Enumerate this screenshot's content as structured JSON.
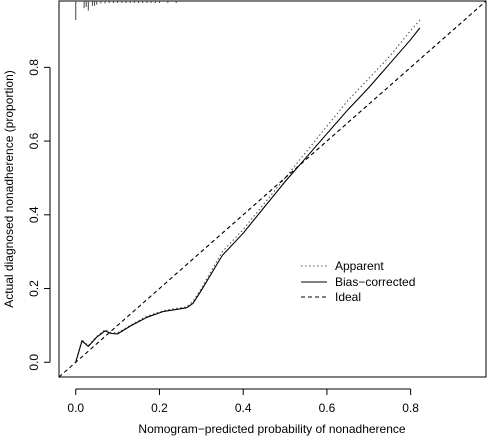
{
  "chart_data": {
    "type": "line",
    "title": "",
    "xlabel": "Nomogram−predicted probability of nonadherence",
    "ylabel": "Actual diagnosed nonadherence (proportion)",
    "xlim": [
      -0.04,
      0.98
    ],
    "ylim": [
      -0.04,
      0.98
    ],
    "x_ticks": [
      0.0,
      0.2,
      0.4,
      0.6,
      0.8
    ],
    "x_tick_labels": [
      "0.0",
      "0.2",
      "0.4",
      "0.6",
      "0.8"
    ],
    "y_ticks": [
      0.0,
      0.2,
      0.4,
      0.6,
      0.8
    ],
    "y_tick_labels": [
      "0.0",
      "0.2",
      "0.4",
      "0.6",
      "0.8"
    ],
    "grid": false,
    "legend_position": "bottom-right",
    "series": [
      {
        "name": "Apparent",
        "style": "dotted",
        "color": "#555555",
        "x": [
          0.0,
          0.015,
          0.03,
          0.05,
          0.07,
          0.085,
          0.1,
          0.13,
          0.17,
          0.21,
          0.25,
          0.265,
          0.28,
          0.3,
          0.35,
          0.4,
          0.45,
          0.5,
          0.55,
          0.6,
          0.65,
          0.7,
          0.75,
          0.8,
          0.825
        ],
        "y": [
          0.0,
          0.06,
          0.045,
          0.07,
          0.088,
          0.08,
          0.08,
          0.1,
          0.125,
          0.14,
          0.148,
          0.15,
          0.165,
          0.2,
          0.3,
          0.36,
          0.43,
          0.5,
          0.57,
          0.64,
          0.71,
          0.77,
          0.83,
          0.9,
          0.932
        ]
      },
      {
        "name": "Bias−corrected",
        "style": "solid",
        "color": "#000000",
        "x": [
          0.0,
          0.015,
          0.03,
          0.05,
          0.07,
          0.085,
          0.1,
          0.13,
          0.17,
          0.21,
          0.25,
          0.265,
          0.28,
          0.3,
          0.35,
          0.4,
          0.45,
          0.5,
          0.55,
          0.6,
          0.65,
          0.7,
          0.75,
          0.8,
          0.822
        ],
        "y": [
          0.0,
          0.058,
          0.043,
          0.068,
          0.085,
          0.078,
          0.077,
          0.098,
          0.122,
          0.138,
          0.145,
          0.148,
          0.16,
          0.195,
          0.29,
          0.35,
          0.42,
          0.49,
          0.555,
          0.62,
          0.685,
          0.745,
          0.81,
          0.875,
          0.907
        ]
      },
      {
        "name": "Ideal",
        "style": "dashed",
        "color": "#000000",
        "x": [
          -0.04,
          0.98
        ],
        "y": [
          -0.04,
          0.98
        ]
      }
    ],
    "rug": {
      "x": [
        0.0,
        0.02,
        0.025,
        0.03,
        0.04,
        0.045,
        0.05,
        0.06,
        0.07,
        0.08,
        0.09,
        0.1,
        0.11,
        0.12,
        0.13,
        0.14,
        0.15,
        0.16,
        0.17,
        0.18,
        0.19,
        0.2,
        0.22,
        0.24
      ],
      "y": [
        0.08,
        0.03,
        0.025,
        0.04,
        0.02,
        0.02,
        0.015,
        0.01,
        0.01,
        0.008,
        0.006,
        0.006,
        0.005,
        0.004,
        0.004,
        0.003,
        0.003,
        0.003,
        0.002,
        0.002,
        0.002,
        0.002,
        0.002,
        0.002
      ]
    }
  }
}
